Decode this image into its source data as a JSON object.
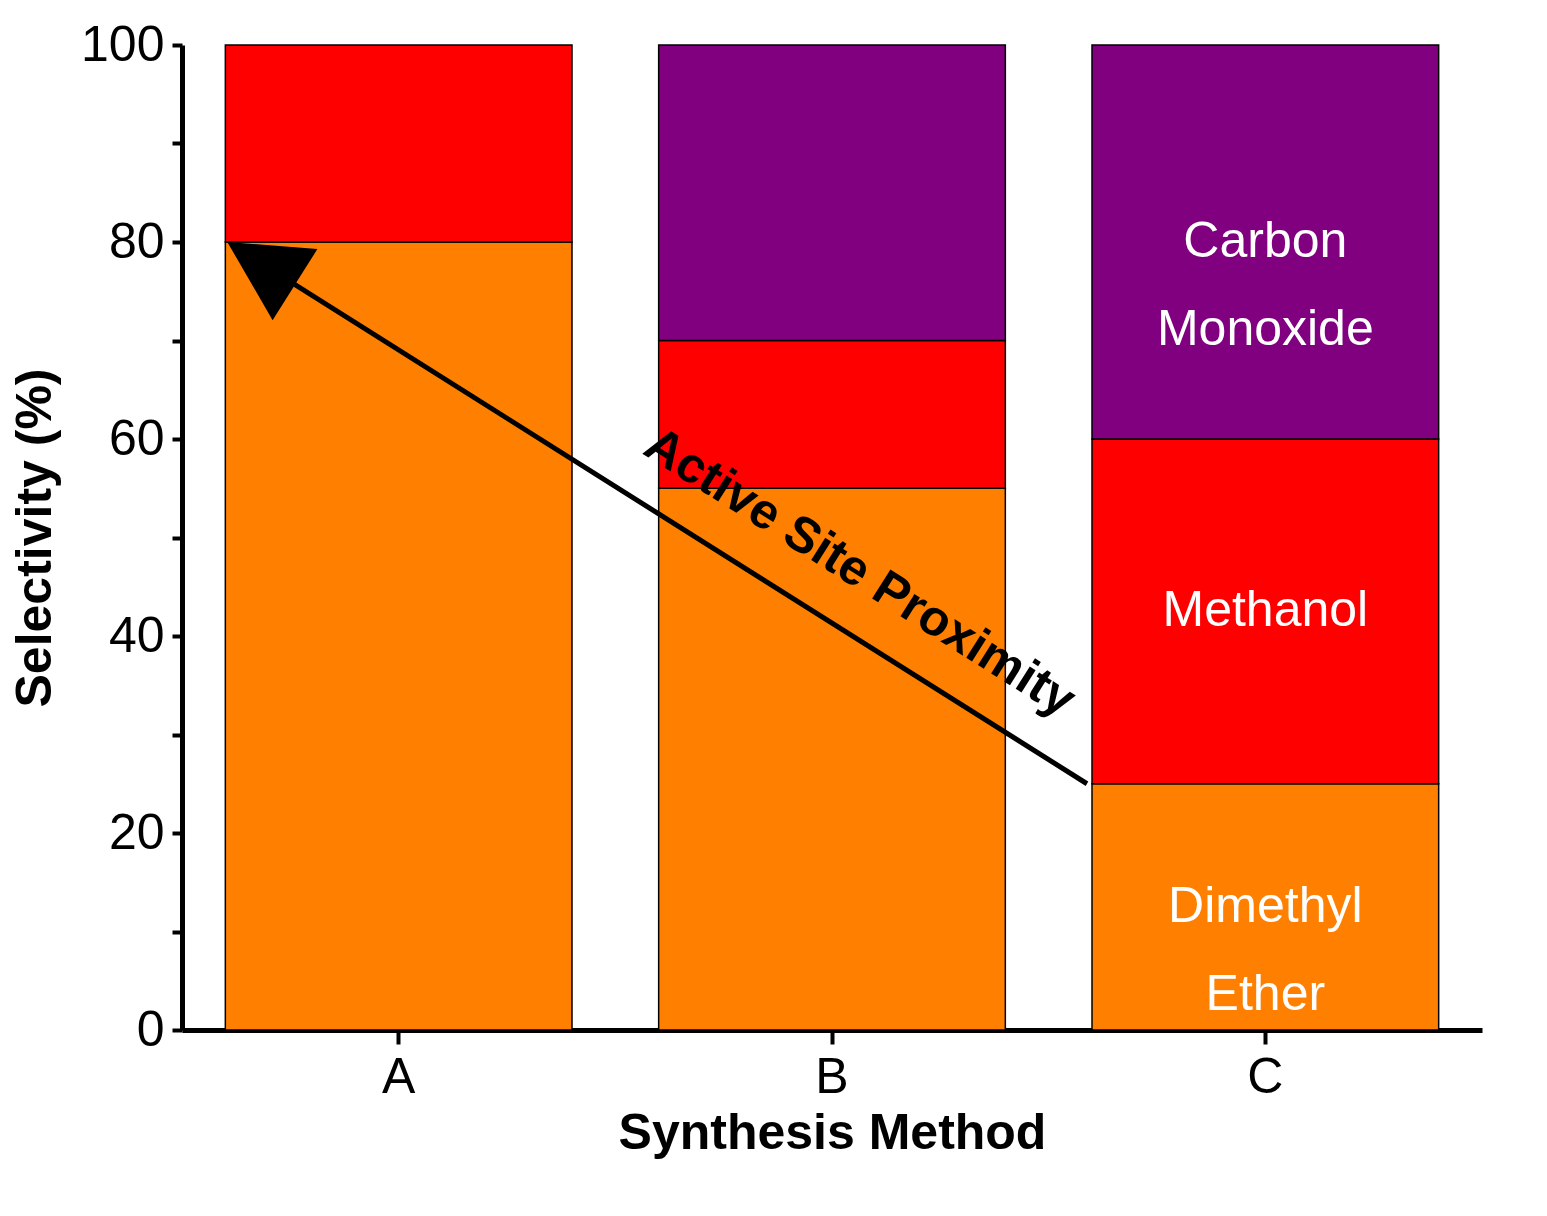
{
  "chart_data": {
    "type": "bar",
    "stacked": true,
    "xlabel": "Synthesis Method",
    "ylabel": "Selectivity (%)",
    "categories": [
      "A",
      "B",
      "C"
    ],
    "series": [
      {
        "name": "Dimethyl Ether",
        "color": "#ff8000",
        "values": [
          80,
          55,
          25
        ]
      },
      {
        "name": "Methanol",
        "color": "#ff0000",
        "values": [
          20,
          15,
          35
        ]
      },
      {
        "name": "Carbon Monoxide",
        "color": "#800080",
        "values": [
          0,
          30,
          40
        ]
      }
    ],
    "ylim": [
      0,
      100
    ],
    "yticks": [
      0,
      {
        "value": 10,
        "label": null
      },
      20,
      {
        "value": 30,
        "label": null
      },
      40,
      {
        "value": 50,
        "label": null
      },
      60,
      {
        "value": 70,
        "label": null
      },
      80,
      {
        "value": 90,
        "label": null
      },
      100
    ],
    "annotations": [
      "Active Site Proximity"
    ],
    "legend": false,
    "grid": false
  }
}
